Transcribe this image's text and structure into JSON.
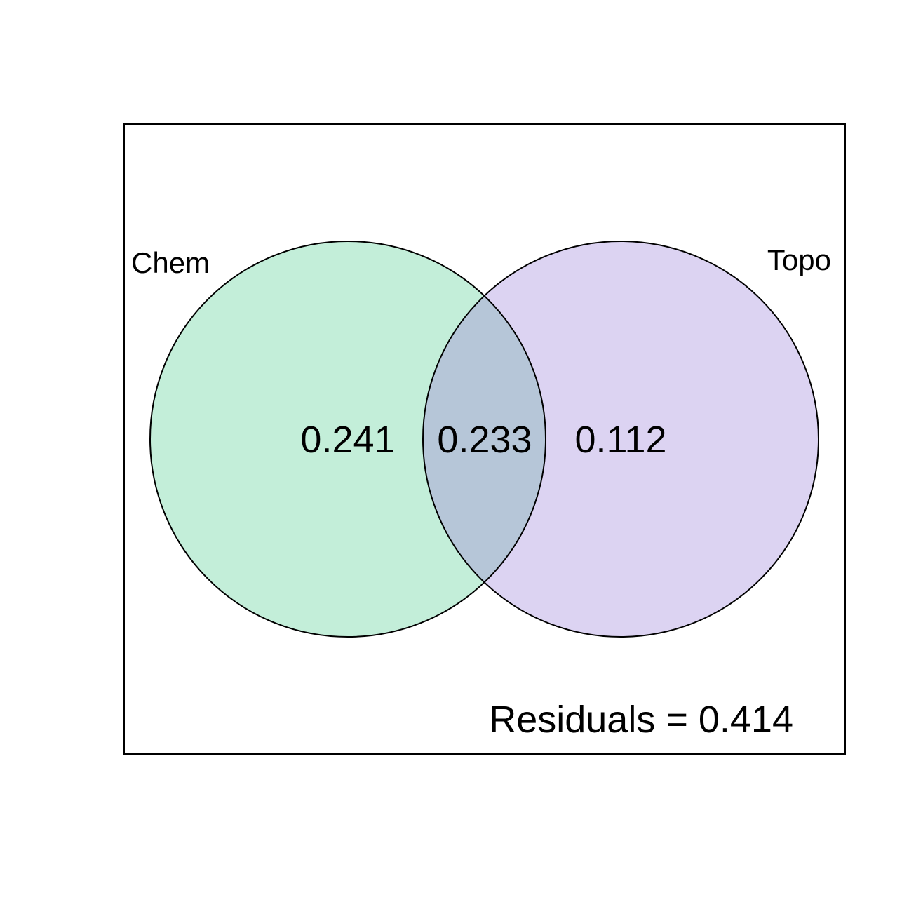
{
  "diagram": {
    "type": "venn",
    "sets": [
      {
        "name": "Chem",
        "color": "#c3eed9"
      },
      {
        "name": "Topo",
        "color": "#dcd3f2"
      }
    ],
    "overlap_color": "#b6c6d8",
    "regions": {
      "chem_only": "0.241",
      "shared": "0.233",
      "topo_only": "0.112"
    },
    "residuals": "Residuals = 0.414"
  }
}
